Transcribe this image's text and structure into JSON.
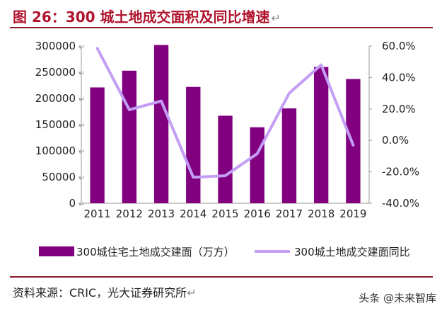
{
  "title": "图 26：300 城土地成交面积及同比增速",
  "source": "资料来源：CRIC，光大证券研究所",
  "watermark": "头条 @未来智库",
  "colors": {
    "bar": "#800080",
    "line": "#c49ef5",
    "title": "#b0142d"
  },
  "chart_data": {
    "type": "bar",
    "categories": [
      "2011",
      "2012",
      "2013",
      "2014",
      "2015",
      "2016",
      "2017",
      "2018",
      "2019"
    ],
    "series": [
      {
        "name": "300城住宅土地成交建面（万方）",
        "type": "bar",
        "axis": "left",
        "values": [
          221000,
          253000,
          302000,
          222000,
          167000,
          145000,
          181000,
          260000,
          237000
        ]
      },
      {
        "name": "300城土地成交建面同比",
        "type": "line",
        "axis": "right",
        "values": [
          58.5,
          19.5,
          25.0,
          -23.5,
          -22.5,
          -8.5,
          30.0,
          48.0,
          -3.0
        ]
      }
    ],
    "y_left": {
      "min": 0,
      "max": 300000,
      "step": 50000,
      "ticks": [
        "0",
        "50000",
        "100000",
        "150000",
        "200000",
        "250000",
        "300000"
      ]
    },
    "y_right": {
      "min": -40,
      "max": 60,
      "step": 20,
      "ticks": [
        "-40.0%",
        "-20.0%",
        "0.0%",
        "20.0%",
        "40.0%",
        "60.0%"
      ]
    },
    "legend": "bottom",
    "grid": false
  }
}
